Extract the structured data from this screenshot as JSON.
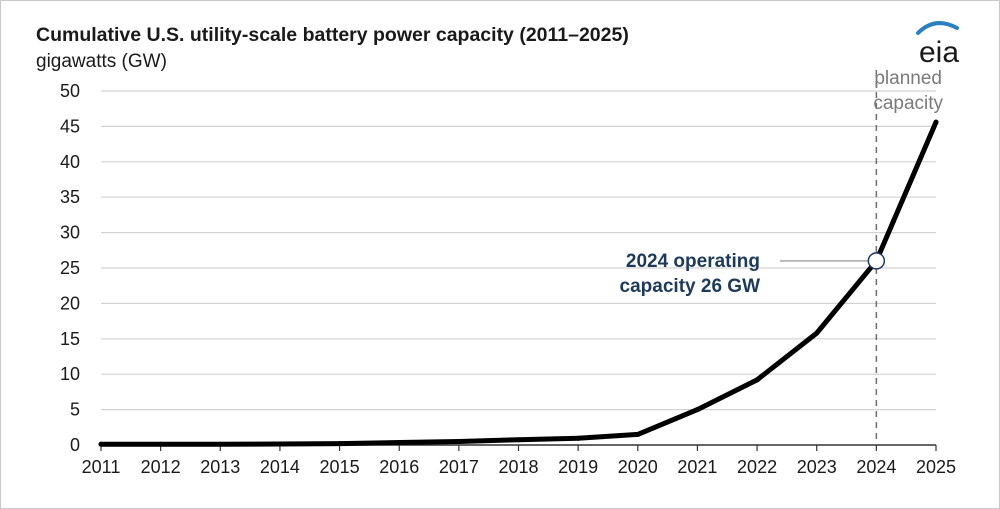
{
  "title": "Cumulative U.S. utility-scale battery power capacity (2011–2025)",
  "unit_label": "gigawatts (GW)",
  "logo": {
    "text": "eia",
    "accent_color": "#2a7fc0"
  },
  "annotation": {
    "line1": "2024 operating",
    "line2": "capacity 26 GW",
    "x": 2024,
    "y": 26
  },
  "planned_label": {
    "line1": "planned",
    "line2": "capacity"
  },
  "chart_data": {
    "type": "line",
    "x": [
      2011,
      2012,
      2013,
      2014,
      2015,
      2016,
      2017,
      2018,
      2019,
      2020,
      2021,
      2022,
      2023,
      2024,
      2025
    ],
    "series": [
      {
        "values": [
          0.1,
          0.1,
          0.1,
          0.15,
          0.2,
          0.35,
          0.5,
          0.75,
          0.95,
          1.5,
          5.0,
          9.2,
          15.8,
          26,
          45.6
        ]
      }
    ],
    "x_ticks": [
      "2011",
      "2012",
      "2013",
      "2014",
      "2015",
      "2016",
      "2017",
      "2018",
      "2019",
      "2020",
      "2021",
      "2022",
      "2023",
      "2024",
      "2025"
    ],
    "y_ticks": [
      "0",
      "5",
      "10",
      "15",
      "20",
      "25",
      "30",
      "35",
      "40",
      "45",
      "50"
    ],
    "ylim": [
      0,
      50
    ],
    "xlim": [
      2011,
      2025
    ],
    "planned_divider_x": 2024,
    "grid": true,
    "line_color": "#000000"
  }
}
